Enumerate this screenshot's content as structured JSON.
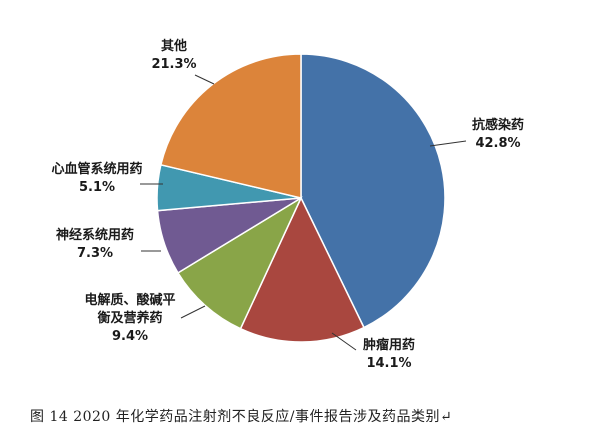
{
  "chart_data": {
    "type": "pie",
    "slices": [
      {
        "label": "抗感染药",
        "value": 42.8,
        "value_label": "42.8%",
        "color": "#4472A8"
      },
      {
        "label": "肿瘤用药",
        "value": 14.1,
        "value_label": "14.1%",
        "color": "#A9473F"
      },
      {
        "label": "电解质、酸碱平衡及营养药",
        "label_lines": [
          "电解质、酸碱平",
          "衡及营养药"
        ],
        "value": 9.4,
        "value_label": "9.4%",
        "color": "#89A548"
      },
      {
        "label": "神经系统用药",
        "value": 7.3,
        "value_label": "7.3%",
        "color": "#705A92"
      },
      {
        "label": "心血管系统用药",
        "value": 5.1,
        "value_label": "5.1%",
        "color": "#4198B0"
      },
      {
        "label": "其他",
        "value": 21.3,
        "value_label": "21.3%",
        "color": "#DC843A"
      }
    ]
  },
  "caption": "图 14   2020 年化学药品注射剂不良反应/事件报告涉及药品类别↵"
}
